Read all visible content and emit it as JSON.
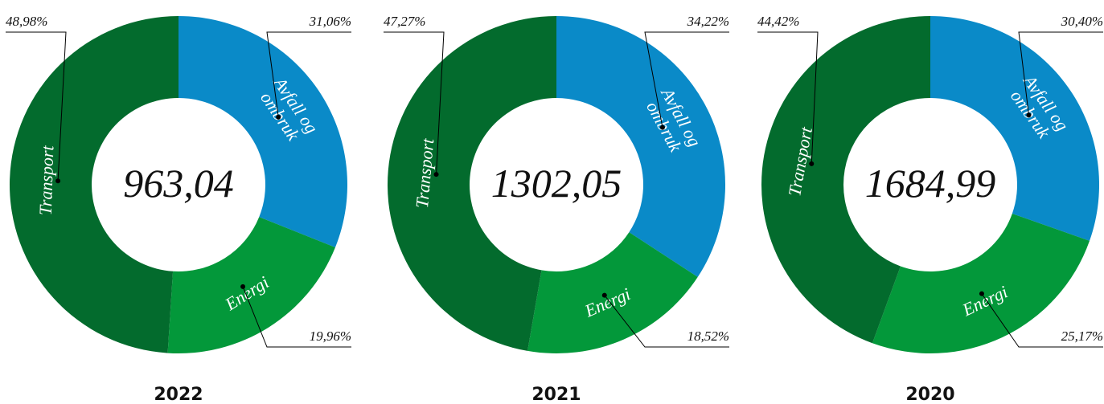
{
  "chart_data": [
    {
      "type": "pie",
      "title": "2022",
      "center_label": "963,04",
      "categories": [
        "Avfall og ombruk",
        "Energi",
        "Transport"
      ],
      "values": [
        31.06,
        19.96,
        48.98
      ],
      "value_labels": [
        "31,06%",
        "19,96%",
        "48,98%"
      ],
      "colors": [
        "#0a8ac8",
        "#03983a",
        "#036b2d"
      ]
    },
    {
      "type": "pie",
      "title": "2021",
      "center_label": "1302,05",
      "categories": [
        "Avfall og ombruk",
        "Energi",
        "Transport"
      ],
      "values": [
        34.22,
        18.52,
        47.27
      ],
      "value_labels": [
        "34,22%",
        "18,52%",
        "47,27%"
      ],
      "colors": [
        "#0a8ac8",
        "#03983a",
        "#036b2d"
      ]
    },
    {
      "type": "pie",
      "title": "2020",
      "center_label": "1684,99",
      "categories": [
        "Avfall og ombruk",
        "Energi",
        "Transport"
      ],
      "values": [
        30.4,
        25.17,
        44.42
      ],
      "value_labels": [
        "30,40%",
        "25,17%",
        "44,42%"
      ],
      "colors": [
        "#0a8ac8",
        "#03983a",
        "#036b2d"
      ]
    }
  ]
}
